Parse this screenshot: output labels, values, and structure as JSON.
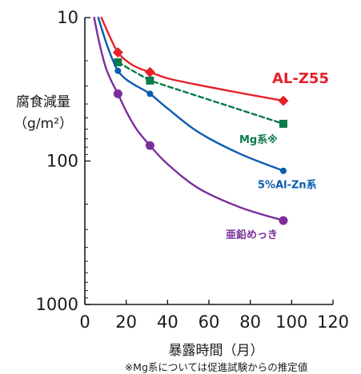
{
  "chart_data": {
    "type": "line",
    "title": "",
    "xlabel": "暴露時間（月）",
    "ylabel": "腐食減量",
    "ylabel_unit": "（g/m²）",
    "footnote": "※Mg系については促進試験からの推定値",
    "x_ticks": [
      "0",
      "20",
      "40",
      "60",
      "80",
      "100",
      "120"
    ],
    "y_ticks": [
      "10",
      "100",
      "1000"
    ],
    "xlim": [
      0,
      120
    ],
    "ylim": [
      10,
      1000
    ],
    "y_scale": "log",
    "y_inverted": true,
    "grid": false,
    "series": [
      {
        "name": "AL-Z55",
        "color": "#e8202a",
        "marker": "diamond",
        "line_style": "solid",
        "x": [
          16,
          31.5,
          96
        ],
        "y": [
          17.5,
          24,
          38
        ],
        "curve_x": [
          8,
          12,
          16,
          21,
          26,
          31.5,
          40,
          55,
          75,
          96
        ],
        "curve_y": [
          10,
          13.5,
          17.5,
          20.5,
          22.5,
          24,
          26.5,
          29.5,
          33.5,
          38
        ]
      },
      {
        "name": "Mg系※",
        "color": "#0b7a4a",
        "marker": "square",
        "line_style": "dashed",
        "x": [
          16,
          31.5,
          96
        ],
        "y": [
          20.5,
          27.5,
          55
        ],
        "curve_x": [
          16,
          31.5,
          96
        ],
        "curve_y": [
          20.5,
          27.5,
          55
        ]
      },
      {
        "name": "5%Al-Zn系",
        "color": "#0a5cae",
        "marker": "circle",
        "line_style": "solid",
        "x": [
          16,
          31.5,
          96
        ],
        "y": [
          23.5,
          34,
          117
        ],
        "curve_x": [
          6.5,
          10,
          13,
          16,
          20,
          25,
          31.5,
          40,
          55,
          75,
          96
        ],
        "curve_y": [
          10,
          14.5,
          19,
          23.5,
          27,
          30,
          34,
          43,
          63,
          89,
          117
        ]
      },
      {
        "name": "亜鉛めっき",
        "color": "#7a2f9a",
        "marker": "circle",
        "line_style": "solid",
        "x": [
          16,
          31.5,
          96
        ],
        "y": [
          34,
          78,
          260
        ],
        "curve_x": [
          4.5,
          7,
          10,
          13,
          16,
          20,
          25,
          31.5,
          40,
          55,
          75,
          96
        ],
        "curve_y": [
          10,
          15,
          22,
          28,
          34,
          45,
          60,
          78,
          105,
          155,
          210,
          260
        ]
      }
    ]
  }
}
